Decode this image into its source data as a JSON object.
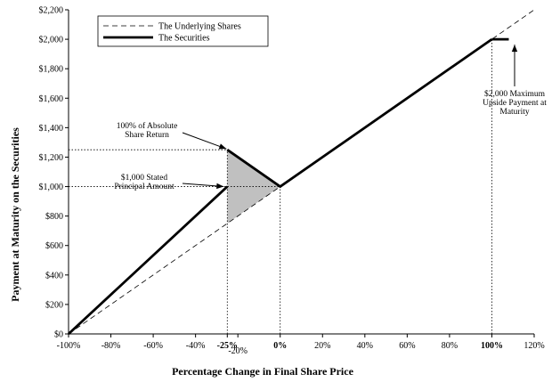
{
  "chart_data": {
    "type": "line",
    "xlabel": "Percentage Change in Final Share Price",
    "ylabel": "Payment at Maturity on the Securities",
    "xlim": [
      -100,
      120
    ],
    "ylim": [
      0,
      2200
    ],
    "x_ticks": [
      {
        "value": -100,
        "label": "-100%",
        "bold": false
      },
      {
        "value": -80,
        "label": "-80%",
        "bold": false
      },
      {
        "value": -60,
        "label": "-60%",
        "bold": false
      },
      {
        "value": -40,
        "label": "-40%",
        "bold": false
      },
      {
        "value": -25,
        "label": "-25%",
        "bold": true
      },
      {
        "value": -20,
        "label": "-20%",
        "bold": false
      },
      {
        "value": 0,
        "label": "0%",
        "bold": true
      },
      {
        "value": 20,
        "label": "20%",
        "bold": false
      },
      {
        "value": 40,
        "label": "40%",
        "bold": false
      },
      {
        "value": 60,
        "label": "60%",
        "bold": false
      },
      {
        "value": 80,
        "label": "80%",
        "bold": false
      },
      {
        "value": 100,
        "label": "100%",
        "bold": true
      },
      {
        "value": 120,
        "label": "120%",
        "bold": false
      }
    ],
    "y_ticks": [
      {
        "value": 0,
        "label": "$0"
      },
      {
        "value": 200,
        "label": "$200"
      },
      {
        "value": 400,
        "label": "$400"
      },
      {
        "value": 600,
        "label": "$600"
      },
      {
        "value": 800,
        "label": "$800"
      },
      {
        "value": 1000,
        "label": "$1,000"
      },
      {
        "value": 1200,
        "label": "$1,200"
      },
      {
        "value": 1400,
        "label": "$1,400"
      },
      {
        "value": 1600,
        "label": "$1,600"
      },
      {
        "value": 1800,
        "label": "$1,800"
      },
      {
        "value": 2000,
        "label": "$2,000"
      },
      {
        "value": 2200,
        "label": "$2,200"
      }
    ],
    "series": [
      {
        "name": "The Underlying Shares",
        "style": "dashed",
        "x": [
          -100,
          120
        ],
        "y": [
          0,
          2200
        ]
      },
      {
        "name": "The Securities",
        "style": "solid-thick",
        "segments": [
          {
            "x": [
              -100,
              -25
            ],
            "y": [
              0,
              1000
            ]
          },
          {
            "x": [
              -25,
              0,
              100
            ],
            "y": [
              1250,
              1000,
              2000
            ]
          },
          {
            "x": [
              100,
              108
            ],
            "y": [
              2000,
              2000
            ]
          }
        ]
      }
    ],
    "shaded_region": {
      "description_points_x": [
        -25,
        -25,
        0
      ],
      "description_points_y": [
        1250,
        750,
        1000
      ],
      "color": "#c0c0c0"
    },
    "reference_lines": [
      {
        "orientation": "vertical",
        "x": -25,
        "y_from": 0,
        "y_to": 1250
      },
      {
        "orientation": "vertical",
        "x": 0,
        "y_from": 0,
        "y_to": 1000
      },
      {
        "orientation": "vertical",
        "x": 100,
        "y_from": 0,
        "y_to": 2000
      },
      {
        "orientation": "horizontal",
        "y": 1250,
        "x_from": -100,
        "x_to": -25
      },
      {
        "orientation": "horizontal",
        "y": 1000,
        "x_from": -100,
        "x_to": 0
      }
    ],
    "annotations": [
      {
        "lines": [
          "100% of Absolute",
          "Share Return"
        ],
        "arrow_to": [
          -25,
          1250
        ]
      },
      {
        "lines": [
          "$1,000 Stated",
          "Principal Amount"
        ],
        "arrow_to": [
          -25,
          1000
        ]
      },
      {
        "lines": [
          "$2,000 Maximum",
          "Upside Payment at",
          "Maturity"
        ],
        "arrow_to": [
          108,
          2000
        ]
      }
    ],
    "legend": {
      "placement": "top-left"
    },
    "grid": false
  }
}
